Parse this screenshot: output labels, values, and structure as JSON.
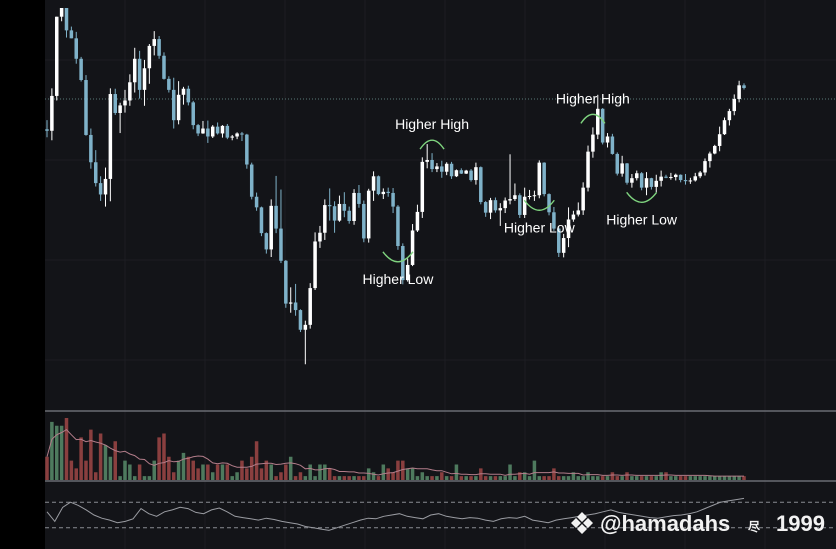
{
  "chart_data": {
    "type": "candlestick",
    "title": "",
    "xlabel": "",
    "ylabel": "",
    "grid": true,
    "price": {
      "ylim": [
        0,
        100
      ],
      "reference_line": 76,
      "up_color": "#ffffff",
      "down_color": "#7fb2c9",
      "candles": [
        {
          "o": 68.0,
          "h": 70.4,
          "l": 65.9,
          "c": 67.6
        },
        {
          "o": 67.6,
          "h": 78.8,
          "l": 65.1,
          "c": 76.8
        },
        {
          "o": 76.8,
          "h": 97.7,
          "l": 75.6,
          "c": 97.7
        },
        {
          "o": 97.7,
          "h": 100.0,
          "l": 96.5,
          "c": 100.0
        },
        {
          "o": 100.0,
          "h": 100.0,
          "l": 92.2,
          "c": 94.1
        },
        {
          "o": 94.1,
          "h": 95.1,
          "l": 92.0,
          "c": 92.0
        },
        {
          "o": 92.0,
          "h": 93.7,
          "l": 85.3,
          "c": 86.6
        },
        {
          "o": 86.6,
          "h": 87.1,
          "l": 80.6,
          "c": 81.0
        },
        {
          "o": 81.0,
          "h": 82.3,
          "l": 66.3,
          "c": 66.5
        },
        {
          "o": 66.5,
          "h": 68.2,
          "l": 57.6,
          "c": 59.3
        },
        {
          "o": 59.3,
          "h": 62.5,
          "l": 52.9,
          "c": 53.8
        },
        {
          "o": 53.8,
          "h": 55.6,
          "l": 49.1,
          "c": 50.8
        },
        {
          "o": 50.8,
          "h": 57.9,
          "l": 47.6,
          "c": 54.9
        },
        {
          "o": 54.9,
          "h": 78.8,
          "l": 49.0,
          "c": 77.3
        },
        {
          "o": 77.3,
          "h": 78.7,
          "l": 71.8,
          "c": 72.3
        },
        {
          "o": 72.3,
          "h": 75.0,
          "l": 67.0,
          "c": 74.3
        },
        {
          "o": 74.3,
          "h": 78.4,
          "l": 72.4,
          "c": 75.6
        },
        {
          "o": 75.6,
          "h": 82.5,
          "l": 74.2,
          "c": 80.4
        },
        {
          "o": 80.4,
          "h": 89.5,
          "l": 77.7,
          "c": 86.6
        },
        {
          "o": 86.6,
          "h": 88.7,
          "l": 76.1,
          "c": 78.4
        },
        {
          "o": 78.4,
          "h": 86.3,
          "l": 74.2,
          "c": 84.1
        },
        {
          "o": 84.1,
          "h": 90.5,
          "l": 80.0,
          "c": 90.0
        },
        {
          "o": 90.0,
          "h": 93.9,
          "l": 87.5,
          "c": 91.8
        },
        {
          "o": 91.8,
          "h": 92.6,
          "l": 86.6,
          "c": 87.4
        },
        {
          "o": 87.4,
          "h": 88.3,
          "l": 81.1,
          "c": 81.3
        },
        {
          "o": 81.3,
          "h": 82.0,
          "l": 77.7,
          "c": 78.4
        },
        {
          "o": 78.4,
          "h": 81.6,
          "l": 68.2,
          "c": 70.4
        },
        {
          "o": 70.4,
          "h": 80.7,
          "l": 69.3,
          "c": 77.1
        },
        {
          "o": 77.1,
          "h": 79.2,
          "l": 74.5,
          "c": 78.7
        },
        {
          "o": 78.7,
          "h": 79.5,
          "l": 74.3,
          "c": 75.1
        },
        {
          "o": 75.1,
          "h": 75.5,
          "l": 68.0,
          "c": 69.1
        },
        {
          "o": 69.1,
          "h": 69.4,
          "l": 66.2,
          "c": 66.9
        },
        {
          "o": 66.9,
          "h": 70.2,
          "l": 66.8,
          "c": 68.2
        },
        {
          "o": 68.2,
          "h": 70.3,
          "l": 64.4,
          "c": 66.1
        },
        {
          "o": 66.1,
          "h": 69.1,
          "l": 65.7,
          "c": 68.7
        },
        {
          "o": 68.7,
          "h": 69.8,
          "l": 66.6,
          "c": 66.9
        },
        {
          "o": 66.9,
          "h": 69.1,
          "l": 65.8,
          "c": 68.9
        },
        {
          "o": 68.9,
          "h": 69.4,
          "l": 65.4,
          "c": 65.8
        },
        {
          "o": 65.8,
          "h": 66.5,
          "l": 65.1,
          "c": 66.1
        },
        {
          "o": 66.1,
          "h": 67.2,
          "l": 65.4,
          "c": 66.9
        },
        {
          "o": 66.9,
          "h": 67.3,
          "l": 64.9,
          "c": 66.6
        },
        {
          "o": 66.6,
          "h": 66.8,
          "l": 57.6,
          "c": 58.7
        },
        {
          "o": 58.7,
          "h": 59.2,
          "l": 49.5,
          "c": 50.2
        },
        {
          "o": 50.2,
          "h": 51.3,
          "l": 46.5,
          "c": 47.4
        },
        {
          "o": 47.4,
          "h": 47.6,
          "l": 39.8,
          "c": 40.6
        },
        {
          "o": 40.6,
          "h": 40.8,
          "l": 35.2,
          "c": 36.3
        },
        {
          "o": 36.3,
          "h": 49.5,
          "l": 34.3,
          "c": 47.8
        },
        {
          "o": 47.8,
          "h": 55.7,
          "l": 40.6,
          "c": 41.8
        },
        {
          "o": 41.8,
          "h": 52.1,
          "l": 32.7,
          "c": 33.3
        },
        {
          "o": 33.3,
          "h": 33.5,
          "l": 20.9,
          "c": 22.0
        },
        {
          "o": 22.0,
          "h": 26.3,
          "l": 19.6,
          "c": 22.3
        },
        {
          "o": 22.3,
          "h": 27.2,
          "l": 18.8,
          "c": 20.3
        },
        {
          "o": 20.3,
          "h": 20.5,
          "l": 14.5,
          "c": 15.1
        },
        {
          "o": 15.1,
          "h": 17.5,
          "l": 6.0,
          "c": 16.4
        },
        {
          "o": 16.4,
          "h": 27.4,
          "l": 15.4,
          "c": 26.1
        },
        {
          "o": 26.1,
          "h": 40.8,
          "l": 25.6,
          "c": 38.4
        },
        {
          "o": 38.4,
          "h": 42.5,
          "l": 36.7,
          "c": 40.7
        },
        {
          "o": 40.7,
          "h": 49.5,
          "l": 38.8,
          "c": 48.0
        },
        {
          "o": 48.0,
          "h": 52.4,
          "l": 43.9,
          "c": 47.7
        },
        {
          "o": 47.7,
          "h": 49.0,
          "l": 40.7,
          "c": 43.9
        },
        {
          "o": 43.9,
          "h": 50.5,
          "l": 43.6,
          "c": 48.3
        },
        {
          "o": 48.3,
          "h": 51.4,
          "l": 44.8,
          "c": 46.5
        },
        {
          "o": 46.5,
          "h": 47.6,
          "l": 43.1,
          "c": 43.8
        },
        {
          "o": 43.8,
          "h": 52.2,
          "l": 42.8,
          "c": 51.2
        },
        {
          "o": 51.2,
          "h": 53.3,
          "l": 47.3,
          "c": 48.3
        },
        {
          "o": 48.3,
          "h": 49.2,
          "l": 38.2,
          "c": 39.2
        },
        {
          "o": 39.2,
          "h": 52.3,
          "l": 38.1,
          "c": 51.8
        },
        {
          "o": 51.8,
          "h": 56.9,
          "l": 49.1,
          "c": 55.6
        },
        {
          "o": 55.6,
          "h": 55.8,
          "l": 50.6,
          "c": 50.9
        },
        {
          "o": 50.9,
          "h": 52.4,
          "l": 49.6,
          "c": 51.5
        },
        {
          "o": 51.5,
          "h": 52.6,
          "l": 50.2,
          "c": 51.2
        },
        {
          "o": 51.2,
          "h": 52.5,
          "l": 45.9,
          "c": 47.6
        },
        {
          "o": 47.6,
          "h": 48.0,
          "l": 36.2,
          "c": 37.2
        },
        {
          "o": 37.2,
          "h": 37.9,
          "l": 27.1,
          "c": 28.2
        },
        {
          "o": 28.2,
          "h": 33.9,
          "l": 27.8,
          "c": 32.2
        },
        {
          "o": 32.2,
          "h": 43.0,
          "l": 31.9,
          "c": 41.3
        },
        {
          "o": 41.3,
          "h": 48.1,
          "l": 40.9,
          "c": 46.2
        },
        {
          "o": 46.2,
          "h": 60.6,
          "l": 44.6,
          "c": 59.4
        },
        {
          "o": 59.4,
          "h": 64.1,
          "l": 57.7,
          "c": 59.9
        },
        {
          "o": 59.9,
          "h": 61.7,
          "l": 56.7,
          "c": 57.5
        },
        {
          "o": 57.5,
          "h": 59.1,
          "l": 56.7,
          "c": 58.2
        },
        {
          "o": 58.2,
          "h": 59.7,
          "l": 55.2,
          "c": 56.8
        },
        {
          "o": 56.8,
          "h": 59.3,
          "l": 55.9,
          "c": 58.9
        },
        {
          "o": 58.9,
          "h": 59.4,
          "l": 54.9,
          "c": 55.6
        },
        {
          "o": 55.6,
          "h": 57.4,
          "l": 55.4,
          "c": 57.2
        },
        {
          "o": 57.2,
          "h": 57.7,
          "l": 56.2,
          "c": 56.3
        },
        {
          "o": 56.3,
          "h": 57.3,
          "l": 56.2,
          "c": 57.1
        },
        {
          "o": 57.1,
          "h": 57.5,
          "l": 54.2,
          "c": 54.6
        },
        {
          "o": 54.6,
          "h": 59.2,
          "l": 53.4,
          "c": 58.0
        },
        {
          "o": 58.0,
          "h": 58.2,
          "l": 48.2,
          "c": 48.8
        },
        {
          "o": 48.8,
          "h": 49.1,
          "l": 44.9,
          "c": 46.0
        },
        {
          "o": 46.0,
          "h": 49.9,
          "l": 44.3,
          "c": 49.3
        },
        {
          "o": 49.3,
          "h": 50.0,
          "l": 46.0,
          "c": 46.6
        },
        {
          "o": 46.6,
          "h": 48.5,
          "l": 42.5,
          "c": 47.2
        },
        {
          "o": 47.2,
          "h": 50.0,
          "l": 45.9,
          "c": 49.2
        },
        {
          "o": 49.2,
          "h": 61.4,
          "l": 48.2,
          "c": 49.6
        },
        {
          "o": 49.6,
          "h": 53.7,
          "l": 49.1,
          "c": 50.6
        },
        {
          "o": 50.6,
          "h": 51.1,
          "l": 44.6,
          "c": 45.4
        },
        {
          "o": 45.4,
          "h": 52.6,
          "l": 44.6,
          "c": 50.2
        },
        {
          "o": 50.2,
          "h": 52.0,
          "l": 49.5,
          "c": 50.4
        },
        {
          "o": 50.4,
          "h": 51.8,
          "l": 49.1,
          "c": 50.6
        },
        {
          "o": 50.6,
          "h": 59.8,
          "l": 49.8,
          "c": 59.2
        },
        {
          "o": 59.2,
          "h": 59.3,
          "l": 50.3,
          "c": 50.9
        },
        {
          "o": 50.9,
          "h": 51.1,
          "l": 45.3,
          "c": 46.1
        },
        {
          "o": 46.1,
          "h": 47.5,
          "l": 41.2,
          "c": 41.8
        },
        {
          "o": 41.8,
          "h": 42.1,
          "l": 34.3,
          "c": 35.4
        },
        {
          "o": 35.4,
          "h": 40.4,
          "l": 34.2,
          "c": 39.3
        },
        {
          "o": 39.3,
          "h": 47.4,
          "l": 36.9,
          "c": 44.2
        },
        {
          "o": 44.2,
          "h": 46.5,
          "l": 43.6,
          "c": 45.5
        },
        {
          "o": 45.5,
          "h": 48.7,
          "l": 45.0,
          "c": 46.6
        },
        {
          "o": 46.6,
          "h": 54.0,
          "l": 45.4,
          "c": 52.6
        },
        {
          "o": 52.6,
          "h": 63.7,
          "l": 51.6,
          "c": 62.1
        },
        {
          "o": 62.1,
          "h": 68.5,
          "l": 60.5,
          "c": 66.6
        },
        {
          "o": 66.6,
          "h": 77.1,
          "l": 65.4,
          "c": 73.4
        },
        {
          "o": 73.4,
          "h": 73.6,
          "l": 64.0,
          "c": 64.5
        },
        {
          "o": 64.5,
          "h": 67.0,
          "l": 63.2,
          "c": 66.1
        },
        {
          "o": 66.1,
          "h": 66.8,
          "l": 61.3,
          "c": 61.5
        },
        {
          "o": 61.5,
          "h": 61.9,
          "l": 55.8,
          "c": 56.3
        },
        {
          "o": 56.3,
          "h": 61.0,
          "l": 55.5,
          "c": 59.0
        },
        {
          "o": 59.0,
          "h": 59.1,
          "l": 53.4,
          "c": 53.9
        },
        {
          "o": 53.9,
          "h": 56.2,
          "l": 52.6,
          "c": 55.1
        },
        {
          "o": 55.1,
          "h": 57.1,
          "l": 54.5,
          "c": 56.4
        },
        {
          "o": 56.4,
          "h": 56.7,
          "l": 51.9,
          "c": 52.6
        },
        {
          "o": 52.6,
          "h": 56.7,
          "l": 50.6,
          "c": 55.1
        },
        {
          "o": 55.1,
          "h": 55.2,
          "l": 52.1,
          "c": 52.8
        },
        {
          "o": 52.8,
          "h": 56.0,
          "l": 51.4,
          "c": 54.4
        },
        {
          "o": 54.4,
          "h": 57.1,
          "l": 52.9,
          "c": 55.5
        },
        {
          "o": 55.5,
          "h": 56.0,
          "l": 55.1,
          "c": 55.2
        },
        {
          "o": 55.2,
          "h": 56.5,
          "l": 54.7,
          "c": 55.4
        },
        {
          "o": 55.4,
          "h": 56.3,
          "l": 54.5,
          "c": 56.0
        },
        {
          "o": 56.0,
          "h": 56.1,
          "l": 54.0,
          "c": 54.6
        },
        {
          "o": 54.6,
          "h": 56.2,
          "l": 53.4,
          "c": 54.3
        },
        {
          "o": 54.3,
          "h": 55.2,
          "l": 53.6,
          "c": 54.5
        },
        {
          "o": 54.5,
          "h": 56.5,
          "l": 54.2,
          "c": 55.6
        },
        {
          "o": 55.6,
          "h": 57.0,
          "l": 55.1,
          "c": 56.6
        },
        {
          "o": 56.6,
          "h": 60.3,
          "l": 55.8,
          "c": 59.6
        },
        {
          "o": 59.6,
          "h": 62.1,
          "l": 57.9,
          "c": 61.6
        },
        {
          "o": 61.6,
          "h": 63.9,
          "l": 61.4,
          "c": 63.6
        },
        {
          "o": 63.6,
          "h": 68.7,
          "l": 62.2,
          "c": 66.7
        },
        {
          "o": 66.7,
          "h": 71.1,
          "l": 66.5,
          "c": 70.4
        },
        {
          "o": 70.4,
          "h": 73.4,
          "l": 69.0,
          "c": 72.8
        },
        {
          "o": 72.8,
          "h": 77.2,
          "l": 71.7,
          "c": 76.0
        },
        {
          "o": 76.0,
          "h": 80.8,
          "l": 75.1,
          "c": 79.6
        },
        {
          "o": 79.6,
          "h": 80.1,
          "l": 78.5,
          "c": 78.9
        }
      ]
    },
    "annotations": [
      {
        "text": "Higher High",
        "kind": "high",
        "at_candle": 79
      },
      {
        "text": "Higher Low",
        "kind": "low",
        "at_candle": 72
      },
      {
        "text": "Higher Low",
        "kind": "low",
        "at_candle": 101
      },
      {
        "text": "Higher High",
        "kind": "high",
        "at_candle": 112
      },
      {
        "text": "Higher Low",
        "kind": "low",
        "at_candle": 122
      }
    ],
    "volume": {
      "values": [
        6,
        15,
        14,
        14,
        16,
        5,
        3,
        11,
        5,
        13,
        2,
        12,
        9,
        6,
        10,
        1,
        5,
        4,
        1,
        4,
        1,
        1,
        5,
        11,
        12,
        6,
        2,
        5,
        7,
        6,
        5,
        3,
        4,
        4,
        2,
        4,
        4,
        4,
        1,
        2,
        5,
        3,
        6,
        10,
        3,
        5,
        4,
        1,
        2,
        4,
        6,
        1,
        2,
        1,
        4,
        1,
        4,
        4,
        3,
        1,
        1,
        1,
        1,
        1,
        1,
        1,
        3,
        2,
        1,
        4,
        3,
        2,
        5,
        5,
        3,
        3,
        1,
        2,
        1,
        1,
        1,
        2,
        1,
        1,
        4,
        1,
        1,
        1,
        1,
        3,
        1,
        1,
        1,
        1,
        1,
        4,
        1,
        2,
        2,
        1,
        5,
        1,
        1,
        1,
        3,
        1,
        1,
        1,
        2,
        1,
        1,
        2,
        1,
        1,
        1,
        1,
        2,
        1,
        1,
        2,
        1,
        1,
        1,
        1,
        1,
        1,
        2,
        2,
        1,
        1,
        1,
        1,
        1,
        1,
        1,
        1,
        1,
        1,
        1,
        1,
        1,
        1,
        1,
        1,
        1,
        1,
        1,
        1,
        1,
        1,
        1,
        1,
        1,
        1
      ],
      "ma_color": "#b37d8a"
    },
    "rsi": {
      "values": [
        55,
        40,
        62,
        70,
        65,
        58,
        50,
        45,
        42,
        38,
        40,
        44,
        60,
        52,
        48,
        55,
        58,
        62,
        60,
        54,
        52,
        58,
        61,
        55,
        48,
        46,
        44,
        42,
        45,
        43,
        40,
        38,
        36,
        32,
        30,
        28,
        26,
        30,
        34,
        38,
        42,
        45,
        44,
        48,
        50,
        52,
        48,
        46,
        44,
        50,
        52,
        48,
        46,
        44,
        46,
        45,
        42,
        40,
        44,
        46,
        45,
        48,
        42,
        40,
        38,
        42,
        44,
        46,
        48,
        50,
        52,
        55,
        58,
        54,
        52,
        50,
        48,
        46,
        45,
        47,
        49,
        50,
        52,
        55,
        60,
        65,
        70,
        72,
        74,
        76
      ],
      "upper_band": 70,
      "lower_band": 30
    }
  },
  "watermark": {
    "handle": "@hamadahs",
    "suffix": "1999",
    "small_glyph": "尽"
  }
}
